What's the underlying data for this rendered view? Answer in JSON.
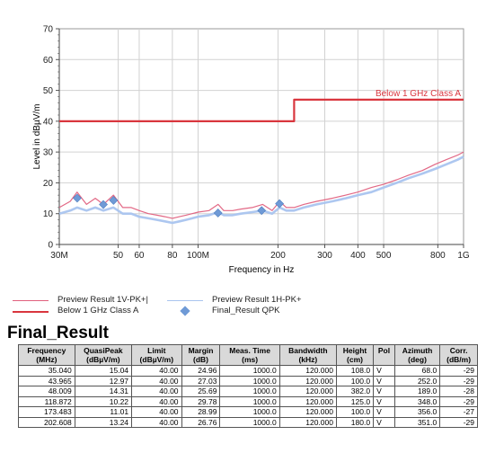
{
  "chart_data": {
    "type": "line",
    "xscale": "log",
    "xlim": [
      30,
      1000
    ],
    "ylim": [
      0,
      70
    ],
    "xlabel": "Frequency in Hz",
    "ylabel": "Level in dBµV/m",
    "grid": true,
    "x_ticks": [
      {
        "value": 30,
        "label": "30M"
      },
      {
        "value": 50,
        "label": "50"
      },
      {
        "value": 60,
        "label": "60"
      },
      {
        "value": 80,
        "label": "80"
      },
      {
        "value": 100,
        "label": "100M"
      },
      {
        "value": 200,
        "label": "200"
      },
      {
        "value": 300,
        "label": "300"
      },
      {
        "value": 400,
        "label": "400"
      },
      {
        "value": 500,
        "label": "500"
      },
      {
        "value": 800,
        "label": "800"
      },
      {
        "value": 1000,
        "label": "1G"
      }
    ],
    "y_ticks": [
      0,
      10,
      20,
      30,
      40,
      50,
      60,
      70
    ],
    "limit_label": "Below 1 GHz Class A",
    "series": [
      {
        "name": "Preview Result 1V-PK+",
        "color": "#e0607e",
        "x": [
          30,
          33,
          35,
          38,
          41,
          44,
          48,
          52,
          56,
          60,
          65,
          70,
          75,
          80,
          85,
          90,
          95,
          100,
          110,
          119,
          125,
          135,
          145,
          160,
          175,
          190,
          203,
          215,
          230,
          250,
          280,
          320,
          360,
          400,
          450,
          500,
          560,
          620,
          700,
          780,
          860,
          950,
          1000
        ],
        "y": [
          12,
          14,
          17,
          13,
          15,
          13,
          16,
          12,
          12,
          11,
          10,
          9.5,
          9,
          8.5,
          9,
          9.5,
          10,
          10.5,
          11,
          13,
          11,
          11,
          11.5,
          12,
          13,
          11,
          14,
          12,
          12,
          13,
          14,
          15,
          16,
          17,
          18.5,
          19.5,
          21,
          22.5,
          24,
          26,
          27.5,
          29,
          30
        ]
      },
      {
        "name": "Preview Result 1H-PK+",
        "color": "#a9c4ef",
        "x": [
          30,
          33,
          35,
          38,
          41,
          44,
          48,
          52,
          56,
          60,
          65,
          70,
          75,
          80,
          85,
          90,
          95,
          100,
          110,
          119,
          125,
          135,
          145,
          160,
          175,
          190,
          203,
          215,
          230,
          250,
          280,
          320,
          360,
          400,
          450,
          500,
          560,
          620,
          700,
          780,
          860,
          950,
          1000
        ],
        "y": [
          10,
          11,
          12,
          11,
          12,
          11,
          12,
          10,
          10,
          9,
          8.5,
          8,
          7.5,
          7,
          7.5,
          8,
          8.5,
          9,
          9.5,
          10.5,
          9.5,
          9.5,
          10,
          10.5,
          11,
          10,
          12,
          11,
          11,
          12,
          13,
          14,
          15,
          16,
          17,
          18.5,
          20,
          21.5,
          23,
          24.5,
          26,
          27.5,
          28.5
        ]
      },
      {
        "name": "Below 1 GHz Class A",
        "color": "#d9363e",
        "x": [
          30,
          230,
          230,
          1000
        ],
        "y": [
          40,
          40,
          47,
          47
        ]
      },
      {
        "name": "Final_Result QPK",
        "color": "#6f9ad6",
        "marker": "diamond",
        "x": [
          35.04,
          43.965,
          48.009,
          118.872,
          173.483,
          202.608
        ],
        "y": [
          15.04,
          12.97,
          14.31,
          10.22,
          11.01,
          13.24
        ]
      }
    ]
  },
  "legend": {
    "items": [
      {
        "label": "Preview Result 1V-PK+|",
        "color": "#e0607e"
      },
      {
        "label": "Below 1 GHz Class A",
        "color": "#d9363e"
      },
      {
        "label": "Preview Result 1H-PK+",
        "color": "#a9c4ef"
      },
      {
        "label": "Final_Result QPK",
        "color": "#6f9ad6"
      }
    ]
  },
  "final_result": {
    "title": "Final_Result",
    "headers": [
      [
        "Frequency",
        "(MHz)"
      ],
      [
        "QuasiPeak",
        "(dBµV/m)"
      ],
      [
        "Limit",
        "(dBµV/m)"
      ],
      [
        "Margin",
        "(dB)"
      ],
      [
        "Meas. Time",
        "(ms)"
      ],
      [
        "Bandwidth",
        "(kHz)"
      ],
      [
        "Height",
        "(cm)"
      ],
      [
        "Pol",
        ""
      ],
      [
        "Azimuth",
        "(deg)"
      ],
      [
        "Corr.",
        "(dB/m)"
      ]
    ],
    "rows": [
      [
        "35.040",
        "15.04",
        "40.00",
        "24.96",
        "1000.0",
        "120.000",
        "108.0",
        "V",
        "68.0",
        "-29"
      ],
      [
        "43.965",
        "12.97",
        "40.00",
        "27.03",
        "1000.0",
        "120.000",
        "100.0",
        "V",
        "252.0",
        "-29"
      ],
      [
        "48.009",
        "14.31",
        "40.00",
        "25.69",
        "1000.0",
        "120.000",
        "382.0",
        "V",
        "189.0",
        "-28"
      ],
      [
        "118.872",
        "10.22",
        "40.00",
        "29.78",
        "1000.0",
        "120.000",
        "125.0",
        "V",
        "348.0",
        "-29"
      ],
      [
        "173.483",
        "11.01",
        "40.00",
        "28.99",
        "1000.0",
        "120.000",
        "100.0",
        "V",
        "356.0",
        "-27"
      ],
      [
        "202.608",
        "13.24",
        "40.00",
        "26.76",
        "1000.0",
        "120.000",
        "180.0",
        "V",
        "351.0",
        "-29"
      ]
    ]
  }
}
